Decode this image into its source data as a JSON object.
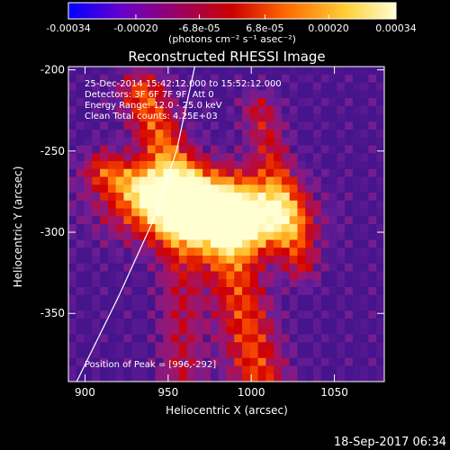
{
  "chart_data": [
    {
      "type": "colorbar",
      "title": "(photons cm⁻² s⁻¹ asec⁻²)",
      "ticks": [
        -0.00034,
        -0.0002,
        -6.8e-05,
        6.8e-05,
        0.0002,
        0.00034
      ],
      "tick_labels": [
        "-0.00034",
        "-0.00020",
        "-6.8e-05",
        "6.8e-05",
        "0.00020",
        "0.00034"
      ],
      "range": [
        -0.00034,
        0.00034
      ],
      "colors": [
        "#0000ff",
        "#6600cc",
        "#990066",
        "#cc0000",
        "#ff6600",
        "#ffcc33",
        "#ffffd0"
      ]
    },
    {
      "type": "heatmap",
      "title": "Reconstructed RHESSI Image",
      "xlabel": "Heliocentric X (arcsec)",
      "ylabel": "Heliocentric Y (arcsec)",
      "xlim": [
        890,
        1080
      ],
      "ylim": [
        -392,
        -198
      ],
      "xticks": [
        900,
        950,
        1000,
        1050
      ],
      "yticks": [
        -200,
        -250,
        -300,
        -350
      ],
      "annotations": [
        "25-Dec-2014 15:42:12.000 to 15:52:12.000",
        "Detectors: 3F 6F 7F 9F, Att 0",
        "Energy Range: 12.0 - 25.0 keV",
        "Clean     Total counts: 4.25E+03"
      ],
      "peak_label": "Position of Peak = [996,-292]",
      "peak": [
        996,
        -292
      ],
      "limb_curve": [
        [
          895,
          -392
        ],
        [
          920,
          -340
        ],
        [
          940,
          -295
        ],
        [
          955,
          -250
        ],
        [
          966,
          -198
        ]
      ]
    }
  ],
  "footer": {
    "timestamp": "18-Sep-2017 06:34"
  }
}
